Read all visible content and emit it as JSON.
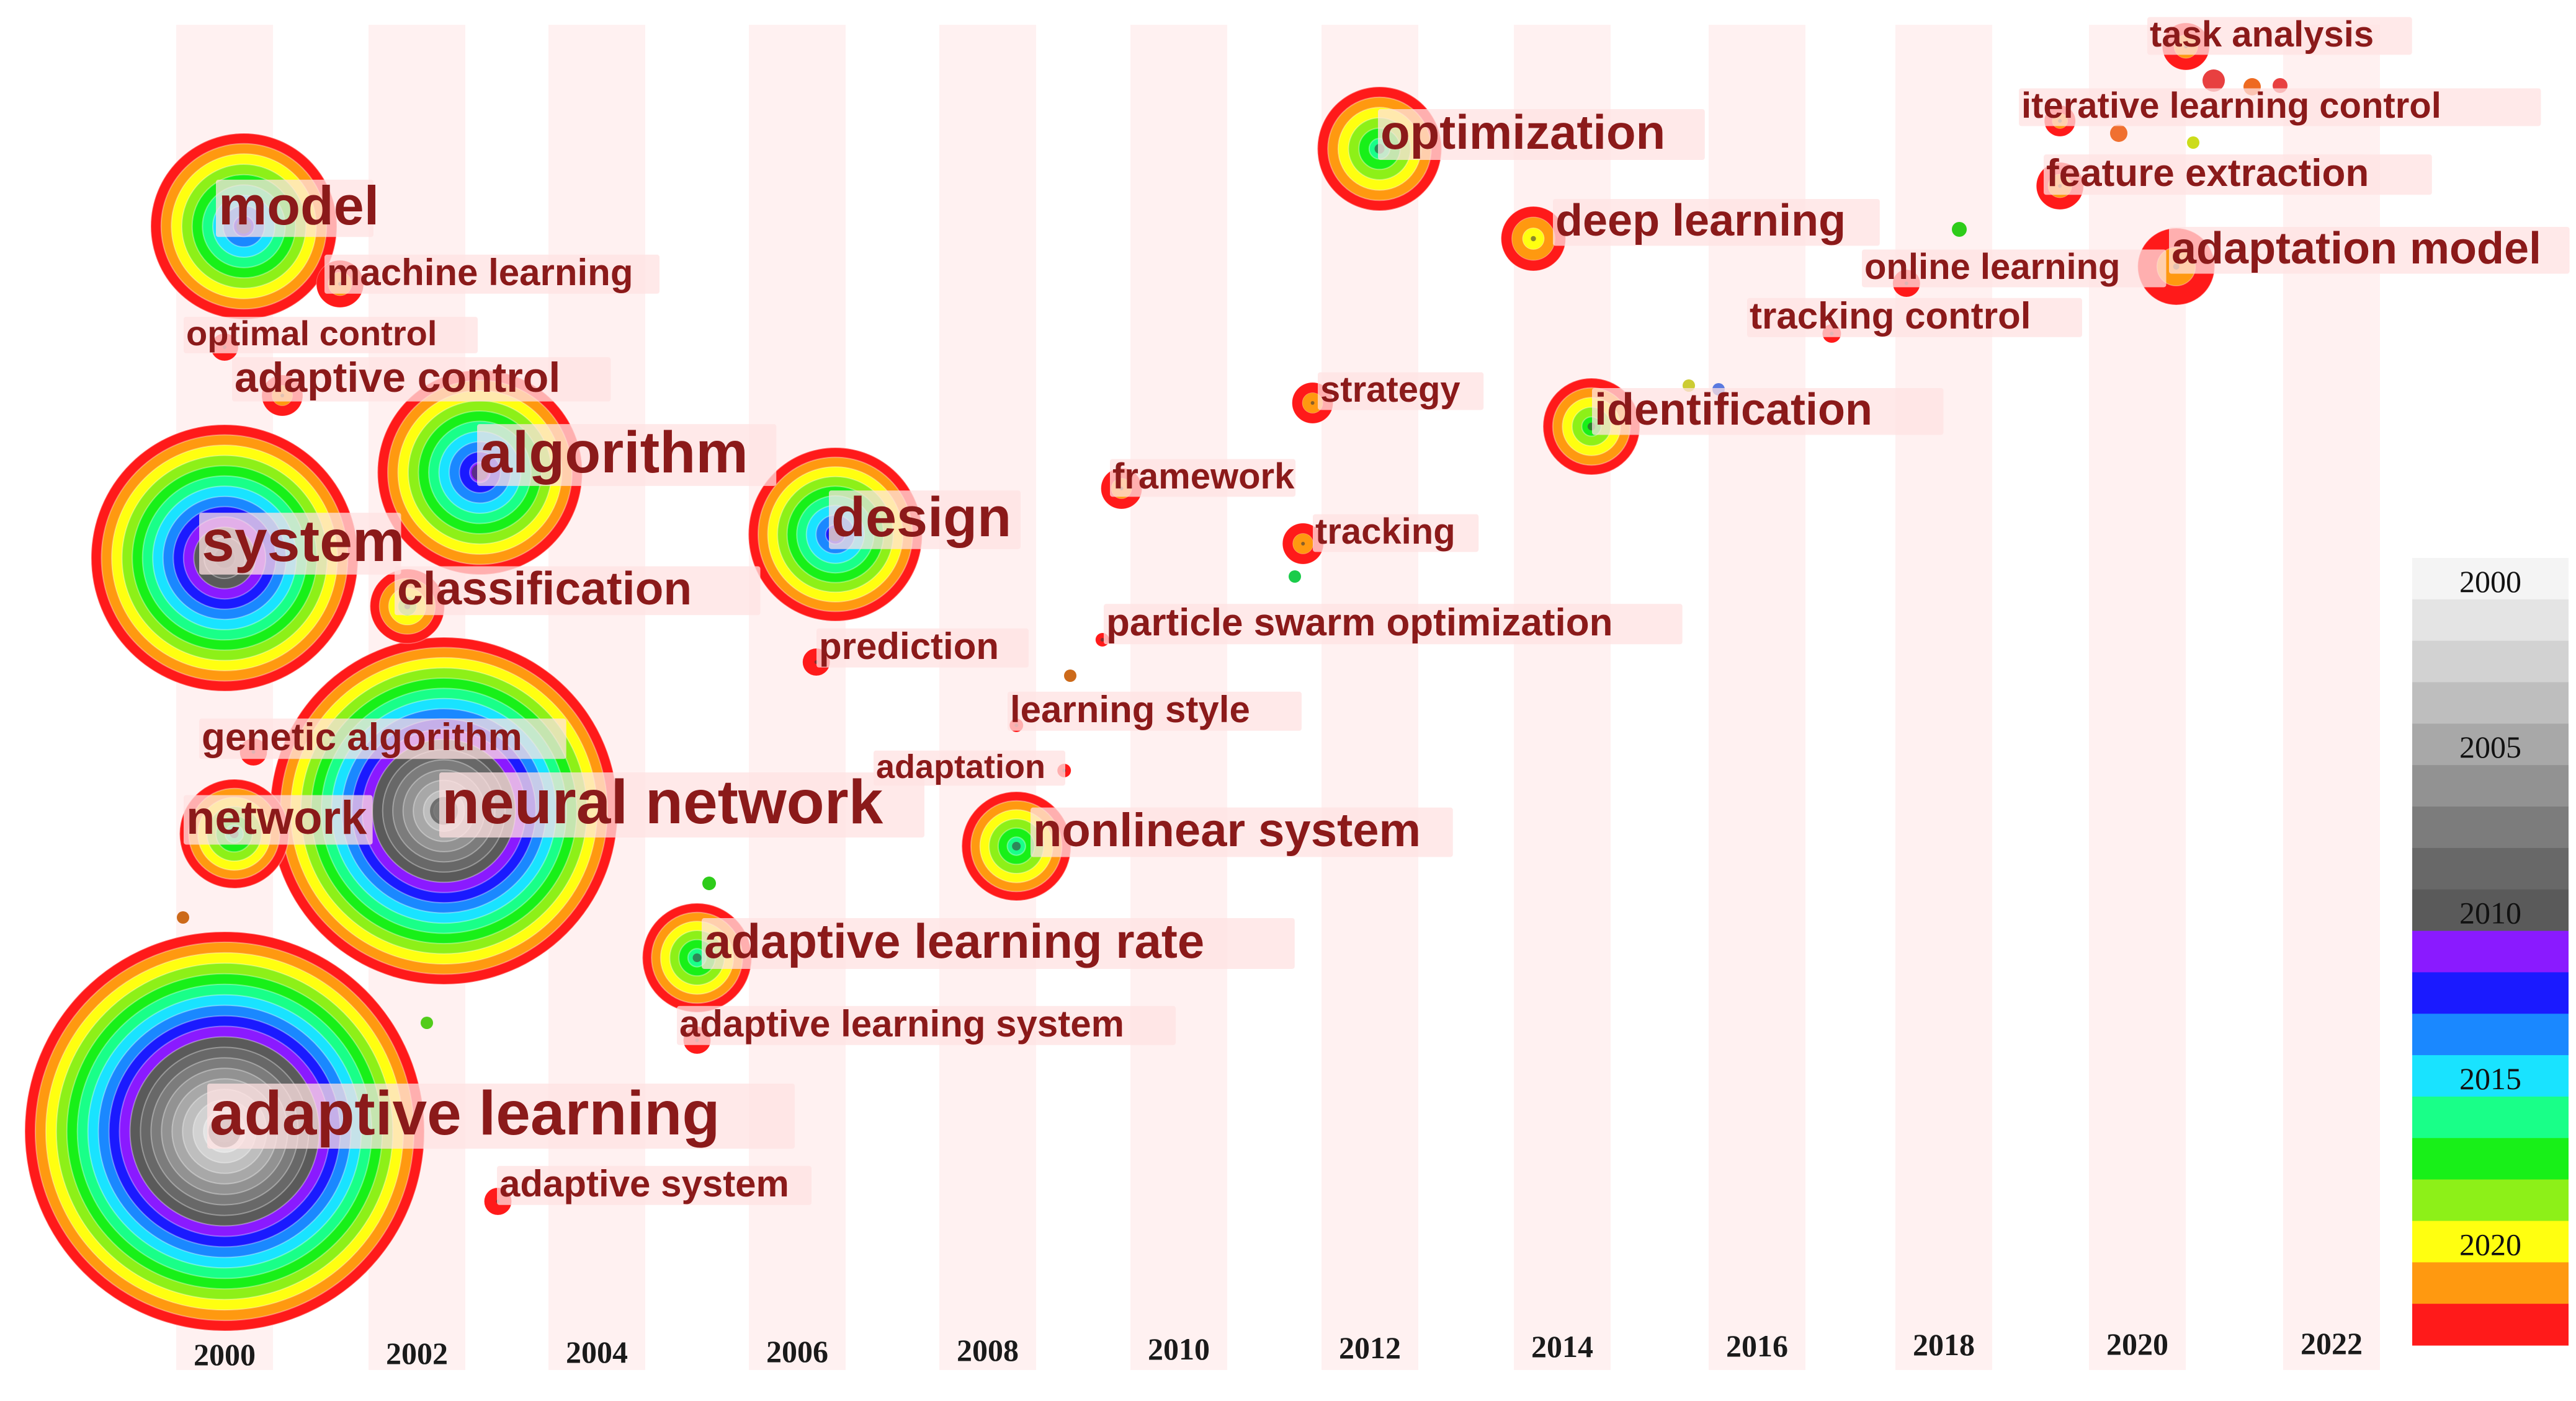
{
  "chart_data": {
    "type": "timezone",
    "years": [
      "2000",
      "2002",
      "2004",
      "2006",
      "2008",
      "2010",
      "2012",
      "2014",
      "2016",
      "2018",
      "2020",
      "2022"
    ],
    "legend": {
      "labels": [
        "2000",
        "2005",
        "2010",
        "2015",
        "2020"
      ],
      "colors": [
        "#f4f4f4",
        "#e4e4e4",
        "#d2d2d2",
        "#bebebe",
        "#a8a8a8",
        "#929292",
        "#7c7c7c",
        "#686868",
        "#5a5a5a",
        "#8a1aff",
        "#1a1aff",
        "#1a88ff",
        "#19e3ff",
        "#19ff88",
        "#18f018",
        "#8df018",
        "#ffff10",
        "#ff9910",
        "#ff1a1a"
      ]
    },
    "keywords": [
      {
        "label": "adaptive learning",
        "year": 2000.0,
        "size": 10
      },
      {
        "label": "neural network",
        "year": 2002.3,
        "size": 9
      },
      {
        "label": "system",
        "year": 2000.0,
        "size": 7
      },
      {
        "label": "model",
        "year": 2000.2,
        "size": 5
      },
      {
        "label": "algorithm",
        "year": 2002.7,
        "size": 5.3
      },
      {
        "label": "design",
        "year": 2006.4,
        "size": 4.3
      },
      {
        "label": "optimization",
        "year": 2012.1,
        "size": 3.1
      },
      {
        "label": "network",
        "year": 2000.1,
        "size": 2.7
      },
      {
        "label": "nonlinear system",
        "year": 2008.3,
        "size": 2.7
      },
      {
        "label": "adaptive learning rate",
        "year": 2005.0,
        "size": 2.7
      },
      {
        "label": "identification",
        "year": 2014.3,
        "size": 2.4
      },
      {
        "label": "classification",
        "year": 2001.9,
        "size": 1.8
      },
      {
        "label": "adaptation model",
        "year": 2020.4,
        "size": 1.8
      },
      {
        "label": "deep learning",
        "year": 2013.7,
        "size": 1.6
      },
      {
        "label": "machine learning",
        "year": 2001.2,
        "size": 1.1
      },
      {
        "label": "task analysis",
        "year": 2020.5,
        "size": 1.1
      },
      {
        "label": "feature extraction",
        "year": 2019.2,
        "size": 1.1
      },
      {
        "label": "tracking",
        "year": 2011.3,
        "size": 1.1
      },
      {
        "label": "strategy",
        "year": 2011.4,
        "size": 1
      },
      {
        "label": "framework",
        "year": 2009.4,
        "size": 1
      },
      {
        "label": "adaptive control",
        "year": 2000.6,
        "size": 1
      },
      {
        "label": "genetic algorithm",
        "year": 2000.3,
        "size": 0.7
      },
      {
        "label": "iterative learning control",
        "year": 2019.2,
        "size": 0.7
      },
      {
        "label": "online learning",
        "year": 2017.6,
        "size": 0.7
      },
      {
        "label": "optimal control",
        "year": 2000.0,
        "size": 0.7
      },
      {
        "label": "adaptive system",
        "year": 2002.9,
        "size": 0.7
      },
      {
        "label": "adaptive learning system",
        "year": 2005.0,
        "size": 0.7
      },
      {
        "label": "prediction",
        "year": 2006.2,
        "size": 0.7
      },
      {
        "label": "tracking control",
        "year": 2016.8,
        "size": 0.5
      },
      {
        "label": "particle swarm optimization",
        "year": 2009.2,
        "size": 0.4
      },
      {
        "label": "learning style",
        "year": 2008.3,
        "size": 0.4
      },
      {
        "label": "adaptation",
        "year": 2008.8,
        "size": 0.4
      }
    ]
  }
}
